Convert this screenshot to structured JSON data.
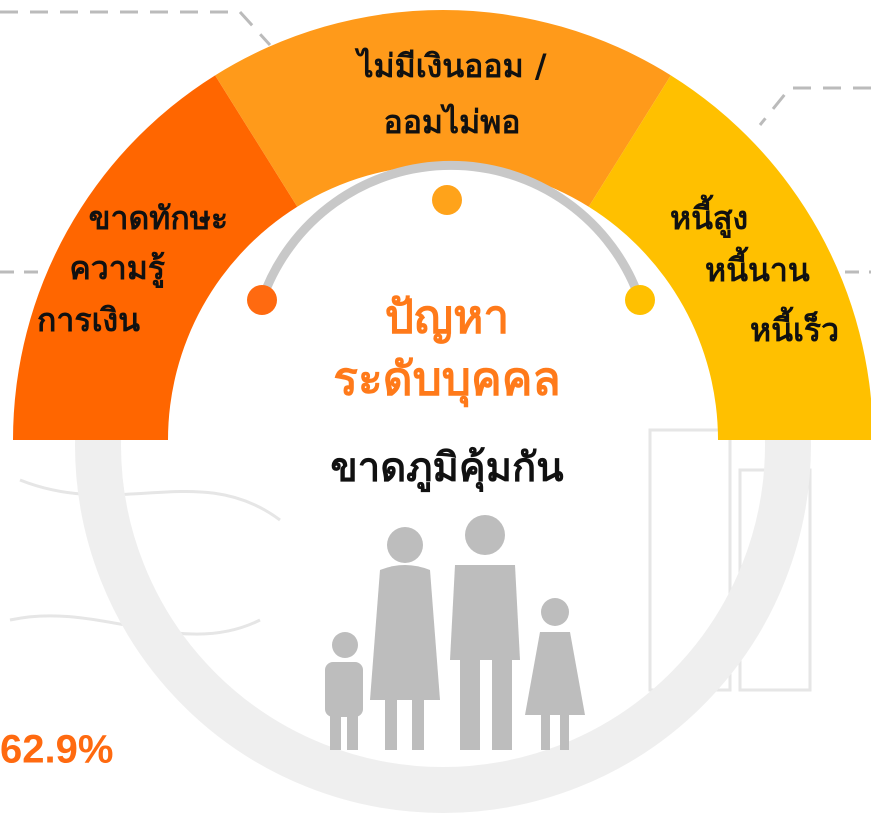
{
  "segments": [
    {
      "lines": [
        "ขาดทักษะ",
        "ความรู้",
        "การเงิน"
      ]
    },
    {
      "lines": [
        "ไม่มีเงินออม /",
        "ออมไม่พอ"
      ]
    },
    {
      "lines": [
        "หนี้สูง",
        "หนี้นาน",
        "หนี้เร็ว"
      ]
    }
  ],
  "center": {
    "title": [
      "ปัญหา",
      "ระดับบุคคล"
    ],
    "subtitle": "ขาดภูมิคุ้มกัน"
  },
  "stat": "62.9%"
}
